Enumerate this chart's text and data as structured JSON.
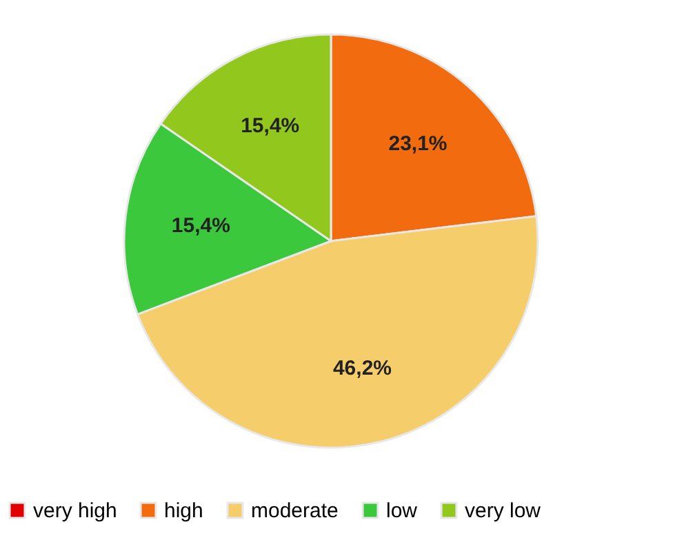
{
  "chart_data": {
    "type": "pie",
    "categories": [
      "very high",
      "high",
      "moderate",
      "low",
      "very low"
    ],
    "values": [
      0,
      23.1,
      46.2,
      15.4,
      15.4
    ],
    "colors": [
      "#e00000",
      "#f26b0f",
      "#f5cd6a",
      "#3cc83c",
      "#92c81e"
    ],
    "value_labels": [
      null,
      "23,1%",
      "46,2%",
      "15,4%",
      "15,4%"
    ],
    "legend": "bottom"
  }
}
